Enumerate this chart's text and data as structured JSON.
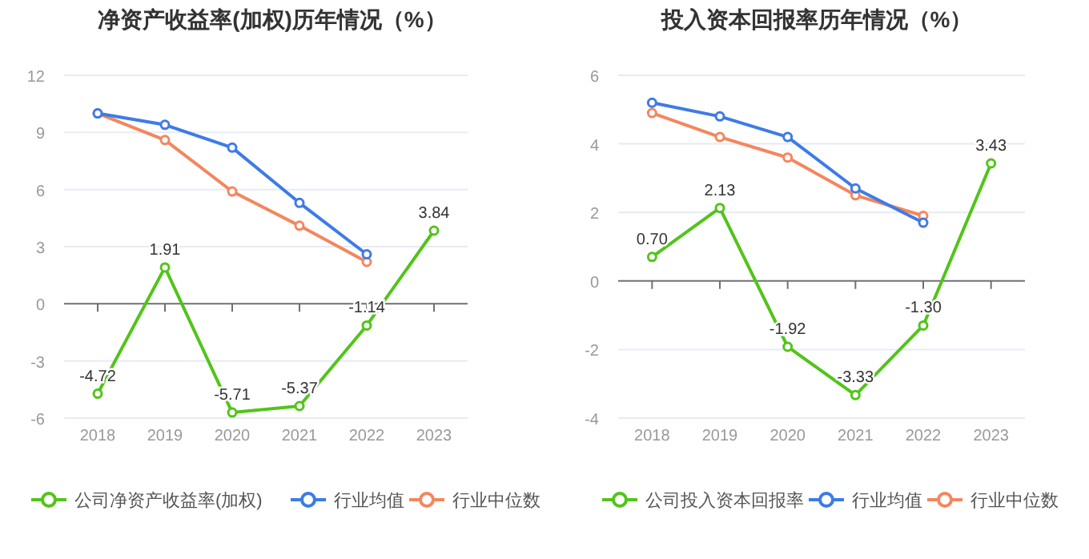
{
  "chart_data": [
    {
      "type": "line",
      "title": "净资产收益率(加权)历年情况（%）",
      "categories": [
        "2018",
        "2019",
        "2020",
        "2021",
        "2022",
        "2023"
      ],
      "ylim": [
        -6,
        12
      ],
      "yticks": [
        -6,
        -3,
        0,
        3,
        6,
        9,
        12
      ],
      "grid": "y",
      "legend": "bottom",
      "marker": "circle",
      "line_style": "solid",
      "series": [
        {
          "name": "公司净资产收益率(加权)",
          "color": "#52c41a",
          "values": [
            -4.72,
            1.91,
            -5.71,
            -5.37,
            -1.14,
            3.84
          ],
          "value_labels": [
            "-4.72",
            "1.91",
            "-5.71",
            "-5.37",
            "-1.14",
            "3.84"
          ]
        },
        {
          "name": "行业均值",
          "color": "#3e7be6",
          "values": [
            10.0,
            9.4,
            8.2,
            5.3,
            2.6,
            null
          ]
        },
        {
          "name": "行业中位数",
          "color": "#f4865e",
          "values": [
            10.0,
            8.6,
            5.9,
            4.1,
            2.2,
            null
          ]
        }
      ]
    },
    {
      "type": "line",
      "title": "投入资本回报率历年情况（%）",
      "categories": [
        "2018",
        "2019",
        "2020",
        "2021",
        "2022",
        "2023"
      ],
      "ylim": [
        -4,
        6
      ],
      "yticks": [
        -4,
        -2,
        0,
        2,
        4,
        6
      ],
      "grid": "y",
      "legend": "bottom",
      "marker": "circle",
      "line_style": "solid",
      "series": [
        {
          "name": "公司投入资本回报率",
          "color": "#52c41a",
          "values": [
            0.7,
            2.13,
            -1.92,
            -3.33,
            -1.3,
            3.43
          ],
          "value_labels": [
            "0.70",
            "2.13",
            "-1.92",
            "-3.33",
            "-1.30",
            "3.43"
          ]
        },
        {
          "name": "行业均值",
          "color": "#3e7be6",
          "values": [
            5.2,
            4.8,
            4.2,
            2.7,
            1.7,
            null
          ]
        },
        {
          "name": "行业中位数",
          "color": "#f4865e",
          "values": [
            4.9,
            4.2,
            3.6,
            2.5,
            1.9,
            null
          ]
        }
      ]
    }
  ]
}
